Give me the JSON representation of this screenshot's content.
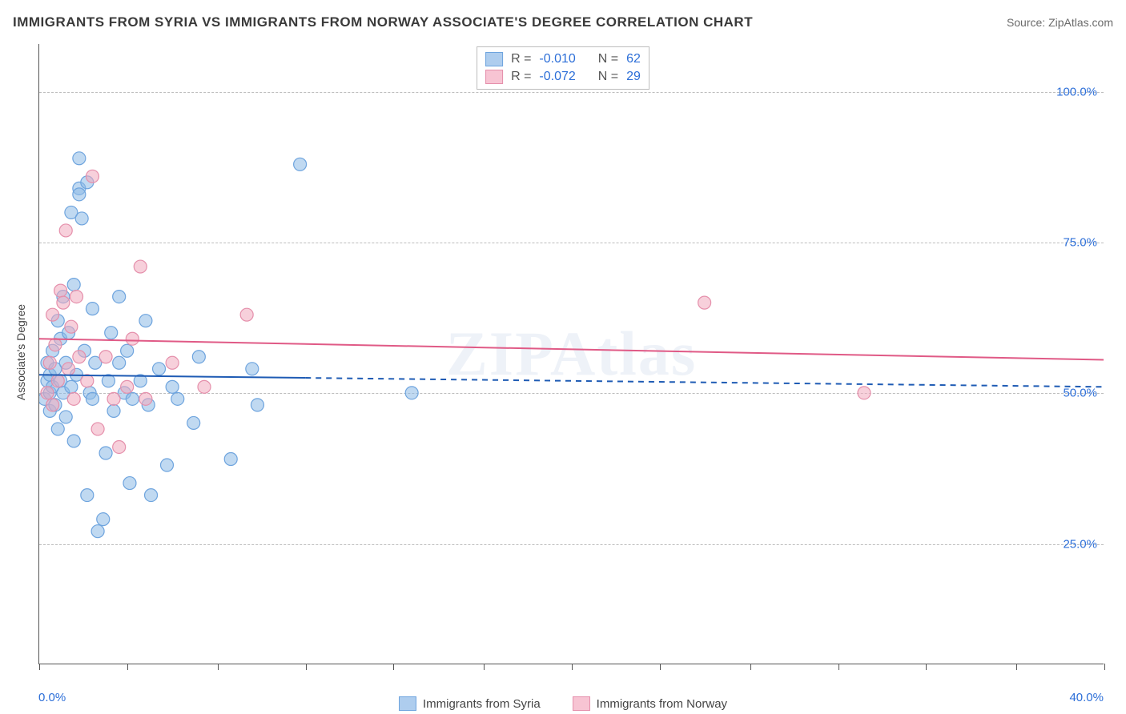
{
  "title": "IMMIGRANTS FROM SYRIA VS IMMIGRANTS FROM NORWAY ASSOCIATE'S DEGREE CORRELATION CHART",
  "source_label": "Source: ZipAtlas.com",
  "watermark": "ZIPAtlas",
  "y_axis": {
    "title": "Associate's Degree"
  },
  "x_axis": {
    "min": 0,
    "max": 40,
    "label_min": "0.0%",
    "label_max": "40.0%",
    "tick_positions": [
      0,
      3.3,
      6.7,
      10,
      13.3,
      16.7,
      20,
      23.3,
      26.7,
      30,
      33.3,
      36.7,
      40
    ]
  },
  "y_gridlines": [
    {
      "value": 25,
      "label": "25.0%"
    },
    {
      "value": 50,
      "label": "50.0%"
    },
    {
      "value": 75,
      "label": "75.0%"
    },
    {
      "value": 100,
      "label": "100.0%"
    }
  ],
  "y_domain": {
    "min": 5,
    "max": 108
  },
  "legend_top": {
    "rows": [
      {
        "sw_fill": "#aecdee",
        "sw_stroke": "#6ea4de",
        "r_label": "R = ",
        "r_value": "-0.010",
        "n_label": "N = ",
        "n_value": "62"
      },
      {
        "sw_fill": "#f7c4d3",
        "sw_stroke": "#e58fab",
        "r_label": "R = ",
        "r_value": "-0.072",
        "n_label": "N = ",
        "n_value": "29"
      }
    ]
  },
  "legend_bottom": {
    "items": [
      {
        "sw_fill": "#aecdee",
        "sw_stroke": "#6ea4de",
        "label": "Immigrants from Syria"
      },
      {
        "sw_fill": "#f7c4d3",
        "sw_stroke": "#e58fab",
        "label": "Immigrants from Norway"
      }
    ]
  },
  "series": {
    "syria": {
      "color_fill": "rgba(140,185,230,0.55)",
      "color_stroke": "#6ea4de",
      "marker_radius": 8,
      "trend": {
        "color": "#1e5bb4",
        "y_start": 53.0,
        "y_end": 51.0,
        "solid_x_end": 10,
        "width": 2
      },
      "points": [
        [
          0.2,
          49
        ],
        [
          0.3,
          52
        ],
        [
          0.3,
          55
        ],
        [
          0.4,
          50
        ],
        [
          0.4,
          47
        ],
        [
          0.4,
          53
        ],
        [
          0.5,
          51
        ],
        [
          0.5,
          57
        ],
        [
          0.6,
          48
        ],
        [
          0.6,
          54
        ],
        [
          0.7,
          62
        ],
        [
          0.7,
          44
        ],
        [
          0.8,
          52
        ],
        [
          0.8,
          59
        ],
        [
          0.9,
          50
        ],
        [
          0.9,
          66
        ],
        [
          1.0,
          55
        ],
        [
          1.0,
          46
        ],
        [
          1.1,
          60
        ],
        [
          1.2,
          51
        ],
        [
          1.2,
          80
        ],
        [
          1.3,
          42
        ],
        [
          1.3,
          68
        ],
        [
          1.4,
          53
        ],
        [
          1.5,
          89
        ],
        [
          1.5,
          84
        ],
        [
          1.5,
          83
        ],
        [
          1.6,
          79
        ],
        [
          1.7,
          57
        ],
        [
          1.8,
          33
        ],
        [
          1.8,
          85
        ],
        [
          1.9,
          50
        ],
        [
          2.0,
          64
        ],
        [
          2.0,
          49
        ],
        [
          2.1,
          55
        ],
        [
          2.2,
          27
        ],
        [
          2.4,
          29
        ],
        [
          2.5,
          40
        ],
        [
          2.6,
          52
        ],
        [
          2.7,
          60
        ],
        [
          2.8,
          47
        ],
        [
          3.0,
          66
        ],
        [
          3.0,
          55
        ],
        [
          3.2,
          50
        ],
        [
          3.3,
          57
        ],
        [
          3.4,
          35
        ],
        [
          3.5,
          49
        ],
        [
          3.8,
          52
        ],
        [
          4.0,
          62
        ],
        [
          4.1,
          48
        ],
        [
          4.2,
          33
        ],
        [
          4.5,
          54
        ],
        [
          4.8,
          38
        ],
        [
          5.0,
          51
        ],
        [
          5.2,
          49
        ],
        [
          5.8,
          45
        ],
        [
          6.0,
          56
        ],
        [
          7.2,
          39
        ],
        [
          8.0,
          54
        ],
        [
          8.2,
          48
        ],
        [
          9.8,
          88
        ],
        [
          14.0,
          50
        ]
      ]
    },
    "norway": {
      "color_fill": "rgba(240,170,190,0.55)",
      "color_stroke": "#e58fab",
      "marker_radius": 8,
      "trend": {
        "color": "#e05a86",
        "y_start": 59.0,
        "y_end": 55.5,
        "solid_x_end": 40,
        "width": 2
      },
      "points": [
        [
          0.3,
          50
        ],
        [
          0.4,
          55
        ],
        [
          0.5,
          63
        ],
        [
          0.5,
          48
        ],
        [
          0.6,
          58
        ],
        [
          0.7,
          52
        ],
        [
          0.8,
          67
        ],
        [
          0.9,
          65
        ],
        [
          1.0,
          77
        ],
        [
          1.1,
          54
        ],
        [
          1.2,
          61
        ],
        [
          1.3,
          49
        ],
        [
          1.4,
          66
        ],
        [
          1.5,
          56
        ],
        [
          1.8,
          52
        ],
        [
          2.0,
          86
        ],
        [
          2.2,
          44
        ],
        [
          2.5,
          56
        ],
        [
          2.8,
          49
        ],
        [
          3.0,
          41
        ],
        [
          3.3,
          51
        ],
        [
          3.5,
          59
        ],
        [
          3.8,
          71
        ],
        [
          4.0,
          49
        ],
        [
          5.0,
          55
        ],
        [
          6.2,
          51
        ],
        [
          7.8,
          63
        ],
        [
          25.0,
          65
        ],
        [
          31.0,
          50
        ]
      ]
    }
  },
  "colors": {
    "title": "#3a3a3a",
    "source": "#6a6a6a",
    "axis": "#555555",
    "grid": "#bdbdbd",
    "value": "#2d6fd8",
    "bg": "#ffffff"
  }
}
